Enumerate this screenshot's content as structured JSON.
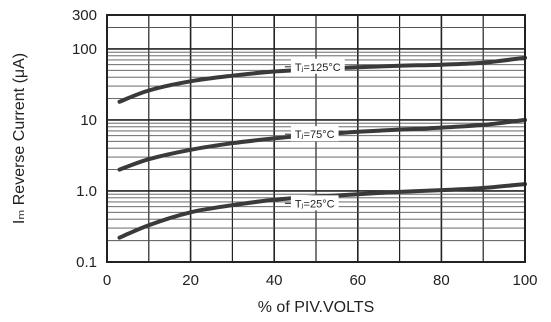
{
  "chart_data": {
    "type": "line",
    "xlabel": "% of PIV.VOLTS",
    "ylabel": "Iₘ Reverse Current (μA)",
    "xlim": [
      0,
      100
    ],
    "ylim": [
      0.1,
      300
    ],
    "y_scale": "log",
    "grid": true,
    "x_ticks": [
      0,
      20,
      40,
      60,
      80,
      100
    ],
    "x_tick_labels": [
      "0",
      "20",
      "40",
      "60",
      "80",
      "100"
    ],
    "y_ticks": [
      0.1,
      1.0,
      10,
      100,
      300
    ],
    "y_tick_labels": [
      "0.1",
      "1.0",
      "10",
      "100",
      "300"
    ],
    "series": [
      {
        "name": "Tⱼ=125°C",
        "label_at": [
          44,
          56
        ],
        "x": [
          3,
          10,
          20,
          30,
          40,
          50,
          60,
          70,
          80,
          90,
          100
        ],
        "y": [
          18,
          26,
          35,
          42,
          48,
          52,
          55,
          58,
          60,
          64,
          75
        ]
      },
      {
        "name": "Tⱼ=75°C",
        "label_at": [
          44,
          6.3
        ],
        "x": [
          3,
          10,
          20,
          30,
          40,
          50,
          60,
          70,
          80,
          90,
          100
        ],
        "y": [
          2.0,
          2.8,
          3.8,
          4.7,
          5.5,
          6.2,
          6.8,
          7.3,
          7.8,
          8.5,
          10
        ]
      },
      {
        "name": "Tⱼ=25°C",
        "label_at": [
          44,
          0.67
        ],
        "x": [
          3,
          10,
          20,
          30,
          40,
          50,
          60,
          70,
          80,
          90,
          100
        ],
        "y": [
          0.22,
          0.33,
          0.5,
          0.63,
          0.75,
          0.83,
          0.9,
          0.97,
          1.03,
          1.1,
          1.25
        ]
      }
    ]
  }
}
